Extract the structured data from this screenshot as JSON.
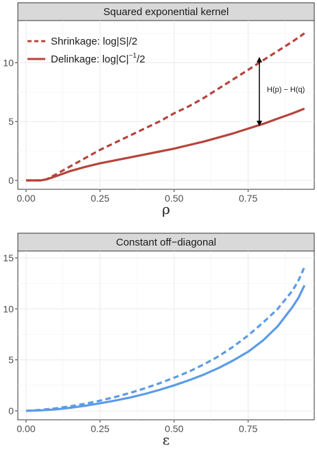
{
  "chart_data": [
    {
      "type": "line",
      "title": "Squared exponential kernel",
      "xlabel": "ρ",
      "ylabel": "",
      "xlim": [
        0.0,
        0.95
      ],
      "ylim": [
        0,
        13
      ],
      "x_ticks": [
        "0.00",
        "0.25",
        "0.50",
        "0.75"
      ],
      "y_ticks": [
        "0",
        "5",
        "10"
      ],
      "grid": true,
      "legend_position": "top-left",
      "series": [
        {
          "name": "Shrinkage: log|S|/2",
          "style": "dashed",
          "color": "#B5443A",
          "x": [
            0.0,
            0.05,
            0.07,
            0.1,
            0.15,
            0.2,
            0.25,
            0.3,
            0.35,
            0.4,
            0.45,
            0.5,
            0.55,
            0.6,
            0.65,
            0.7,
            0.75,
            0.8,
            0.85,
            0.9,
            0.94
          ],
          "y": [
            0.0,
            0.0,
            0.1,
            0.5,
            1.2,
            1.9,
            2.6,
            3.2,
            3.8,
            4.4,
            5.0,
            5.7,
            6.3,
            7.0,
            7.8,
            8.6,
            9.4,
            10.2,
            11.0,
            11.8,
            12.5
          ]
        },
        {
          "name": "Delinkage: log|C|",
          "name_superscript": "−1",
          "name_suffix": "/2",
          "style": "solid",
          "color": "#B5443A",
          "x": [
            0.0,
            0.05,
            0.07,
            0.1,
            0.15,
            0.2,
            0.25,
            0.3,
            0.35,
            0.4,
            0.45,
            0.5,
            0.55,
            0.6,
            0.65,
            0.7,
            0.75,
            0.8,
            0.85,
            0.9,
            0.94
          ],
          "y": [
            0.0,
            0.0,
            0.1,
            0.35,
            0.8,
            1.15,
            1.45,
            1.7,
            1.95,
            2.2,
            2.45,
            2.7,
            3.0,
            3.3,
            3.65,
            4.0,
            4.4,
            4.8,
            5.25,
            5.7,
            6.1
          ]
        }
      ],
      "annotations": [
        {
          "text": "H(p) − H(q)",
          "x": 0.8,
          "y_from": 4.8,
          "y_to": 10.2,
          "type": "double-arrow"
        }
      ]
    },
    {
      "type": "line",
      "title": "Constant off−diagonal",
      "xlabel": "ε",
      "ylabel": "",
      "xlim": [
        0.0,
        0.95
      ],
      "ylim": [
        0,
        15
      ],
      "x_ticks": [
        "0.00",
        "0.25",
        "0.50",
        "0.75"
      ],
      "y_ticks": [
        "0",
        "5",
        "10",
        "15"
      ],
      "grid": true,
      "series": [
        {
          "style": "dashed",
          "color": "#5B9BE6",
          "x": [
            0.0,
            0.05,
            0.1,
            0.15,
            0.2,
            0.25,
            0.3,
            0.35,
            0.4,
            0.45,
            0.5,
            0.55,
            0.6,
            0.65,
            0.7,
            0.75,
            0.8,
            0.85,
            0.9,
            0.92,
            0.94
          ],
          "y": [
            0.0,
            0.1,
            0.25,
            0.45,
            0.7,
            1.0,
            1.35,
            1.75,
            2.2,
            2.7,
            3.25,
            3.85,
            4.55,
            5.35,
            6.3,
            7.4,
            8.65,
            10.0,
            11.8,
            12.8,
            14.1
          ]
        },
        {
          "style": "solid",
          "color": "#5B9BE6",
          "x": [
            0.0,
            0.05,
            0.1,
            0.15,
            0.2,
            0.25,
            0.3,
            0.35,
            0.4,
            0.45,
            0.5,
            0.55,
            0.6,
            0.65,
            0.7,
            0.75,
            0.8,
            0.85,
            0.9,
            0.92,
            0.94
          ],
          "y": [
            0.0,
            0.05,
            0.15,
            0.3,
            0.5,
            0.75,
            1.0,
            1.3,
            1.65,
            2.05,
            2.5,
            3.0,
            3.55,
            4.2,
            4.95,
            5.8,
            6.9,
            8.3,
            10.2,
            11.1,
            12.3
          ]
        }
      ]
    }
  ]
}
